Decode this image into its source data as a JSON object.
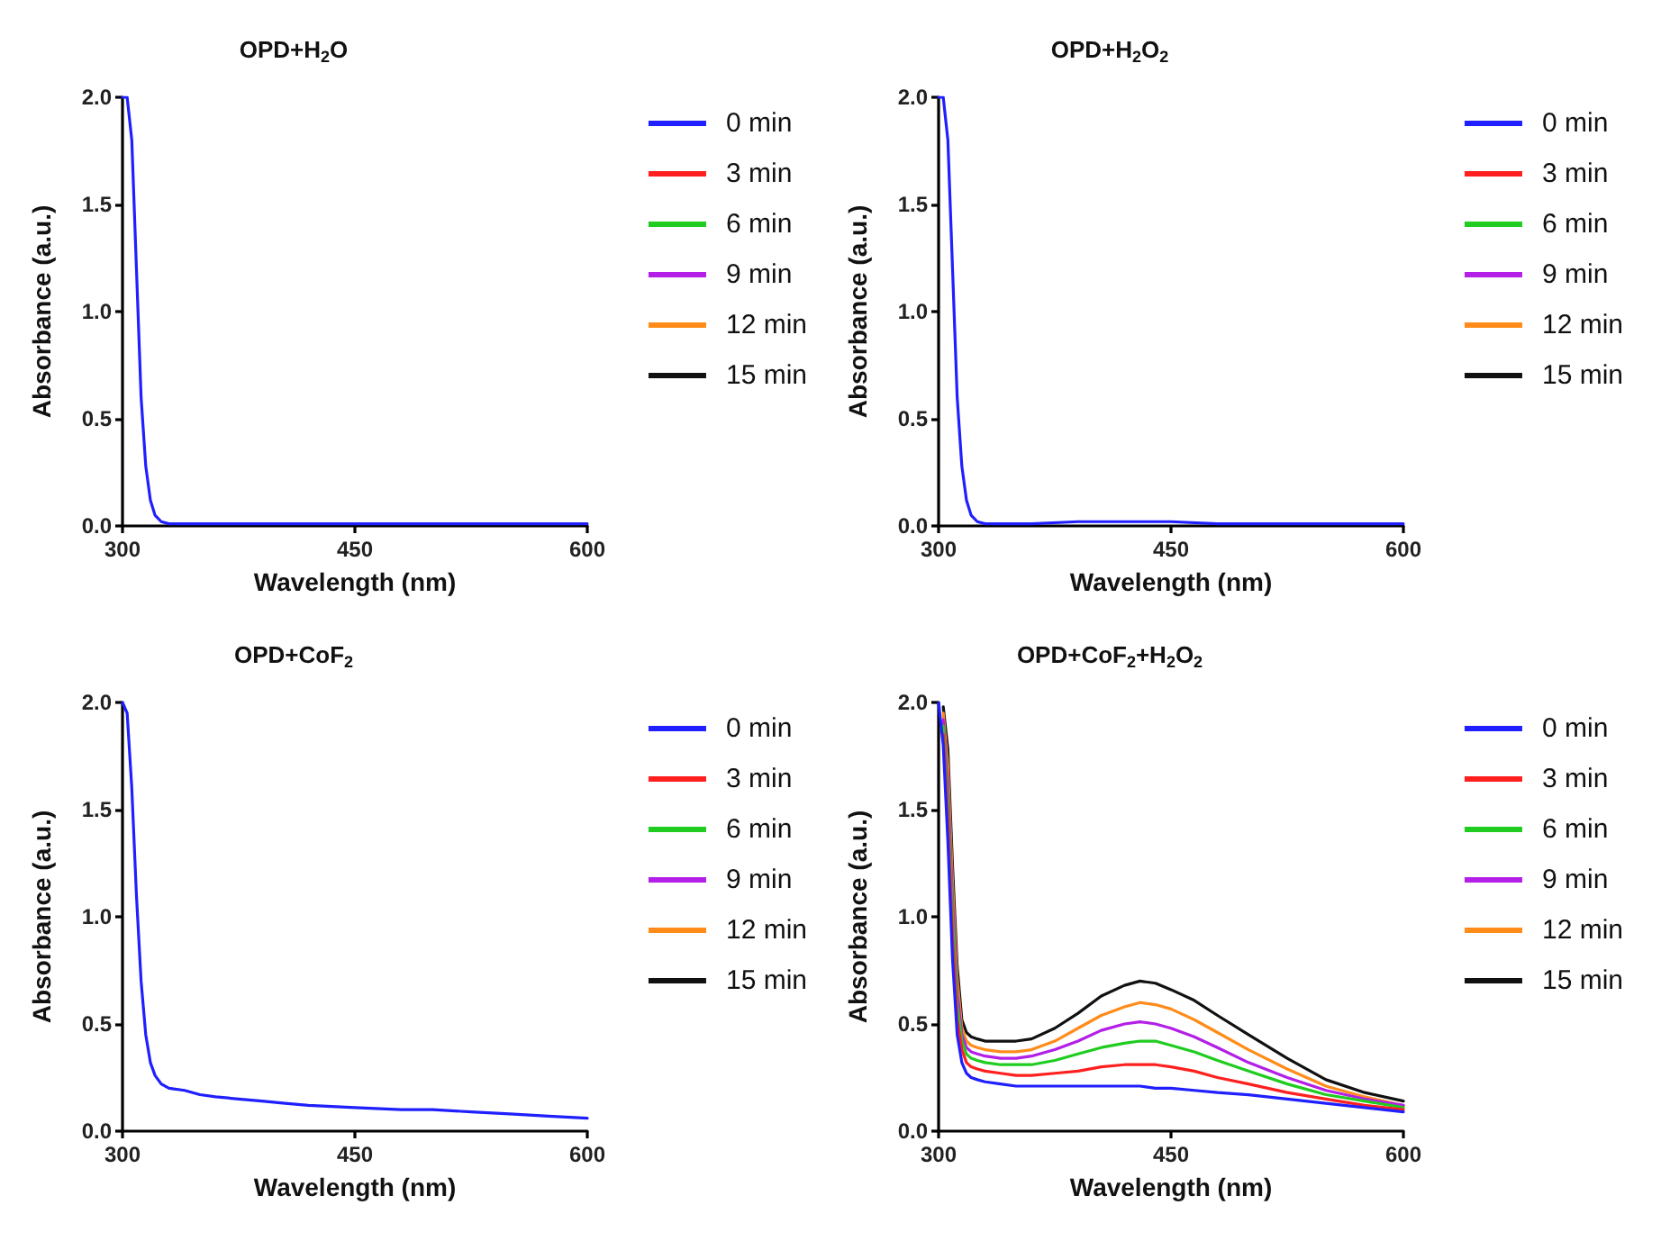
{
  "chart_data": [
    {
      "type": "line",
      "title": "OPD+H$_{2}$O",
      "xlabel": "Wavelength (nm)",
      "ylabel": "Absorbance (a.u.)",
      "xlim": [
        300,
        600
      ],
      "xticks": [
        300,
        450,
        600
      ],
      "ylim": [
        0,
        2
      ],
      "yticks": [
        {
          "value": 0,
          "label": "0.0"
        },
        {
          "value": 0.5,
          "label": "0.5"
        },
        {
          "value": 1,
          "label": "1.0"
        },
        {
          "value": 1.5,
          "label": "1.5"
        },
        {
          "value": 2,
          "label": "2.0"
        }
      ],
      "grid": false,
      "legend": "top right",
      "marker": "none",
      "x": [
        300,
        303,
        306,
        309,
        312,
        315,
        318,
        321,
        325,
        330,
        340,
        360,
        390,
        420,
        450,
        480,
        525,
        575,
        600
      ],
      "series": [
        {
          "name": "0 min",
          "color": "#1f1fff",
          "values": [
            2.0,
            2.0,
            1.8,
            1.2,
            0.6,
            0.28,
            0.12,
            0.05,
            0.02,
            0.01,
            0.01,
            0.01,
            0.01,
            0.01,
            0.01,
            0.01,
            0.01,
            0.01,
            0.01
          ]
        },
        {
          "name": "3 min",
          "color": "#ff1f1f",
          "values": [
            null,
            null,
            null,
            null,
            null,
            null,
            null,
            null,
            null,
            null,
            null,
            null,
            null,
            null,
            null,
            null,
            null,
            null,
            null
          ]
        },
        {
          "name": "6 min",
          "color": "#1fcc1f",
          "values": [
            null,
            null,
            null,
            null,
            null,
            null,
            null,
            null,
            null,
            null,
            null,
            null,
            null,
            null,
            null,
            null,
            null,
            null,
            null
          ]
        },
        {
          "name": "9 min",
          "color": "#b31fe6",
          "values": [
            null,
            null,
            null,
            null,
            null,
            null,
            null,
            null,
            null,
            null,
            null,
            null,
            null,
            null,
            null,
            null,
            null,
            null,
            null
          ]
        },
        {
          "name": "12 min",
          "color": "#ff8c1a",
          "values": [
            null,
            null,
            null,
            null,
            null,
            null,
            null,
            null,
            null,
            null,
            null,
            null,
            null,
            null,
            null,
            null,
            null,
            null,
            null
          ]
        },
        {
          "name": "15 min",
          "color": "#111111",
          "values": [
            null,
            null,
            null,
            null,
            null,
            null,
            null,
            null,
            null,
            null,
            null,
            null,
            null,
            null,
            null,
            null,
            null,
            null,
            null
          ]
        }
      ]
    },
    {
      "type": "line",
      "title": "OPD+H$_{2}$O$_{2}$",
      "xlabel": "Wavelength (nm)",
      "ylabel": "Absorbance (a.u.)",
      "xlim": [
        300,
        600
      ],
      "xticks": [
        300,
        450,
        600
      ],
      "ylim": [
        0,
        2
      ],
      "yticks": [
        {
          "value": 0,
          "label": "0.0"
        },
        {
          "value": 0.5,
          "label": "0.5"
        },
        {
          "value": 1,
          "label": "1.0"
        },
        {
          "value": 1.5,
          "label": "1.5"
        },
        {
          "value": 2,
          "label": "2.0"
        }
      ],
      "grid": false,
      "legend": "top right",
      "marker": "none",
      "x": [
        300,
        303,
        306,
        309,
        312,
        315,
        318,
        321,
        325,
        330,
        340,
        360,
        390,
        420,
        450,
        480,
        525,
        575,
        600
      ],
      "series": [
        {
          "name": "0 min",
          "color": "#1f1fff",
          "values": [
            2.0,
            2.0,
            1.8,
            1.2,
            0.6,
            0.28,
            0.12,
            0.05,
            0.02,
            0.01,
            0.01,
            0.01,
            0.02,
            0.02,
            0.02,
            0.01,
            0.01,
            0.01,
            0.01
          ]
        },
        {
          "name": "3 min",
          "color": "#ff1f1f",
          "values": [
            null,
            null,
            null,
            null,
            null,
            null,
            null,
            null,
            null,
            null,
            null,
            null,
            null,
            null,
            null,
            null,
            null,
            null,
            null
          ]
        },
        {
          "name": "6 min",
          "color": "#1fcc1f",
          "values": [
            null,
            null,
            null,
            null,
            null,
            null,
            null,
            null,
            null,
            null,
            null,
            null,
            null,
            null,
            null,
            null,
            null,
            null,
            null
          ]
        },
        {
          "name": "9 min",
          "color": "#b31fe6",
          "values": [
            null,
            null,
            null,
            null,
            null,
            null,
            null,
            null,
            null,
            null,
            null,
            null,
            null,
            null,
            null,
            null,
            null,
            null,
            null
          ]
        },
        {
          "name": "12 min",
          "color": "#ff8c1a",
          "values": [
            null,
            null,
            null,
            null,
            null,
            null,
            null,
            null,
            null,
            null,
            null,
            null,
            null,
            null,
            null,
            null,
            null,
            null,
            null
          ]
        },
        {
          "name": "15 min",
          "color": "#111111",
          "values": [
            null,
            null,
            null,
            null,
            null,
            null,
            null,
            null,
            null,
            null,
            null,
            null,
            null,
            null,
            null,
            null,
            null,
            null,
            null
          ]
        }
      ]
    },
    {
      "type": "line",
      "title": "OPD+CoF$_{2}$",
      "xlabel": "Wavelength (nm)",
      "ylabel": "Absorbance (a.u.)",
      "xlim": [
        300,
        600
      ],
      "xticks": [
        300,
        450,
        600
      ],
      "ylim": [
        0,
        2
      ],
      "yticks": [
        {
          "value": 0,
          "label": "0.0"
        },
        {
          "value": 0.5,
          "label": "0.5"
        },
        {
          "value": 1,
          "label": "1.0"
        },
        {
          "value": 1.5,
          "label": "1.5"
        },
        {
          "value": 2,
          "label": "2.0"
        }
      ],
      "grid": false,
      "legend": "top right",
      "marker": "none",
      "x": [
        300,
        303,
        306,
        309,
        312,
        315,
        318,
        321,
        325,
        330,
        340,
        350,
        360,
        375,
        390,
        405,
        420,
        450,
        480,
        500,
        525,
        550,
        575,
        600
      ],
      "series": [
        {
          "name": "0 min",
          "color": "#1f1fff",
          "values": [
            2.0,
            1.95,
            1.6,
            1.1,
            0.7,
            0.45,
            0.32,
            0.26,
            0.22,
            0.2,
            0.19,
            0.17,
            0.16,
            0.15,
            0.14,
            0.13,
            0.12,
            0.11,
            0.1,
            0.1,
            0.09,
            0.08,
            0.07,
            0.06
          ]
        },
        {
          "name": "3 min",
          "color": "#ff1f1f",
          "values": [
            null,
            null,
            null,
            null,
            null,
            null,
            null,
            null,
            null,
            null,
            null,
            null,
            null,
            null,
            null,
            null,
            null,
            null,
            null,
            null,
            null,
            null,
            null,
            null
          ]
        },
        {
          "name": "6 min",
          "color": "#1fcc1f",
          "values": [
            null,
            null,
            null,
            null,
            null,
            null,
            null,
            null,
            null,
            null,
            null,
            null,
            null,
            null,
            null,
            null,
            null,
            null,
            null,
            null,
            null,
            null,
            null,
            null
          ]
        },
        {
          "name": "9 min",
          "color": "#b31fe6",
          "values": [
            null,
            null,
            null,
            null,
            null,
            null,
            null,
            null,
            null,
            null,
            null,
            null,
            null,
            null,
            null,
            null,
            null,
            null,
            null,
            null,
            null,
            null,
            null,
            null
          ]
        },
        {
          "name": "12 min",
          "color": "#ff8c1a",
          "values": [
            null,
            null,
            null,
            null,
            null,
            null,
            null,
            null,
            null,
            null,
            null,
            null,
            null,
            null,
            null,
            null,
            null,
            null,
            null,
            null,
            null,
            null,
            null,
            null
          ]
        },
        {
          "name": "15 min",
          "color": "#111111",
          "values": [
            null,
            null,
            null,
            null,
            null,
            null,
            null,
            null,
            null,
            null,
            null,
            null,
            null,
            null,
            null,
            null,
            null,
            null,
            null,
            null,
            null,
            null,
            null,
            null
          ]
        }
      ]
    },
    {
      "type": "line",
      "title": "OPD+CoF$_{2}$+H$_{2}$O$_{2}$",
      "xlabel": "Wavelength (nm)",
      "ylabel": "Absorbance (a.u.)",
      "xlim": [
        300,
        600
      ],
      "xticks": [
        300,
        450,
        600
      ],
      "ylim": [
        0,
        2
      ],
      "yticks": [
        {
          "value": 0,
          "label": "0.0"
        },
        {
          "value": 0.5,
          "label": "0.5"
        },
        {
          "value": 1,
          "label": "1.0"
        },
        {
          "value": 1.5,
          "label": "1.5"
        },
        {
          "value": 2,
          "label": "2.0"
        }
      ],
      "grid": false,
      "legend": "top right",
      "marker": "none",
      "x": [
        300,
        303,
        306,
        309,
        312,
        315,
        318,
        321,
        325,
        330,
        340,
        350,
        360,
        375,
        390,
        405,
        420,
        430,
        440,
        450,
        465,
        480,
        500,
        525,
        550,
        575,
        600
      ],
      "series": [
        {
          "name": "0 min",
          "color": "#1f1fff",
          "values": [
            2.0,
            1.8,
            1.35,
            0.8,
            0.45,
            0.32,
            0.27,
            0.25,
            0.24,
            0.23,
            0.22,
            0.21,
            0.21,
            0.21,
            0.21,
            0.21,
            0.21,
            0.21,
            0.2,
            0.2,
            0.19,
            0.18,
            0.17,
            0.15,
            0.13,
            0.11,
            0.09
          ]
        },
        {
          "name": "3 min",
          "color": "#ff1f1f",
          "values": [
            null,
            1.85,
            1.45,
            0.9,
            0.52,
            0.38,
            0.32,
            0.3,
            0.29,
            0.28,
            0.27,
            0.26,
            0.26,
            0.27,
            0.28,
            0.3,
            0.31,
            0.31,
            0.31,
            0.3,
            0.28,
            0.25,
            0.22,
            0.18,
            0.15,
            0.12,
            0.1
          ]
        },
        {
          "name": "6 min",
          "color": "#1fcc1f",
          "values": [
            null,
            1.89,
            1.54,
            1.0,
            0.59,
            0.42,
            0.36,
            0.34,
            0.33,
            0.32,
            0.31,
            0.31,
            0.31,
            0.33,
            0.36,
            0.39,
            0.41,
            0.42,
            0.42,
            0.4,
            0.37,
            0.33,
            0.28,
            0.22,
            0.17,
            0.14,
            0.11
          ]
        },
        {
          "name": "9 min",
          "color": "#b31fe6",
          "values": [
            null,
            1.92,
            1.62,
            1.08,
            0.65,
            0.45,
            0.39,
            0.37,
            0.36,
            0.35,
            0.34,
            0.34,
            0.35,
            0.38,
            0.42,
            0.47,
            0.5,
            0.51,
            0.5,
            0.48,
            0.44,
            0.39,
            0.32,
            0.25,
            0.19,
            0.15,
            0.12
          ]
        },
        {
          "name": "12 min",
          "color": "#ff8c1a",
          "values": [
            null,
            1.95,
            1.7,
            1.16,
            0.71,
            0.48,
            0.42,
            0.4,
            0.39,
            0.38,
            0.37,
            0.37,
            0.38,
            0.42,
            0.48,
            0.54,
            0.58,
            0.6,
            0.59,
            0.57,
            0.52,
            0.46,
            0.38,
            0.29,
            0.21,
            0.16,
            0.12
          ]
        },
        {
          "name": "15 min",
          "color": "#111111",
          "values": [
            null,
            1.98,
            1.78,
            1.24,
            0.77,
            0.52,
            0.46,
            0.44,
            0.43,
            0.42,
            0.42,
            0.42,
            0.43,
            0.48,
            0.55,
            0.63,
            0.68,
            0.7,
            0.69,
            0.66,
            0.61,
            0.54,
            0.45,
            0.34,
            0.24,
            0.18,
            0.14
          ]
        }
      ]
    }
  ]
}
